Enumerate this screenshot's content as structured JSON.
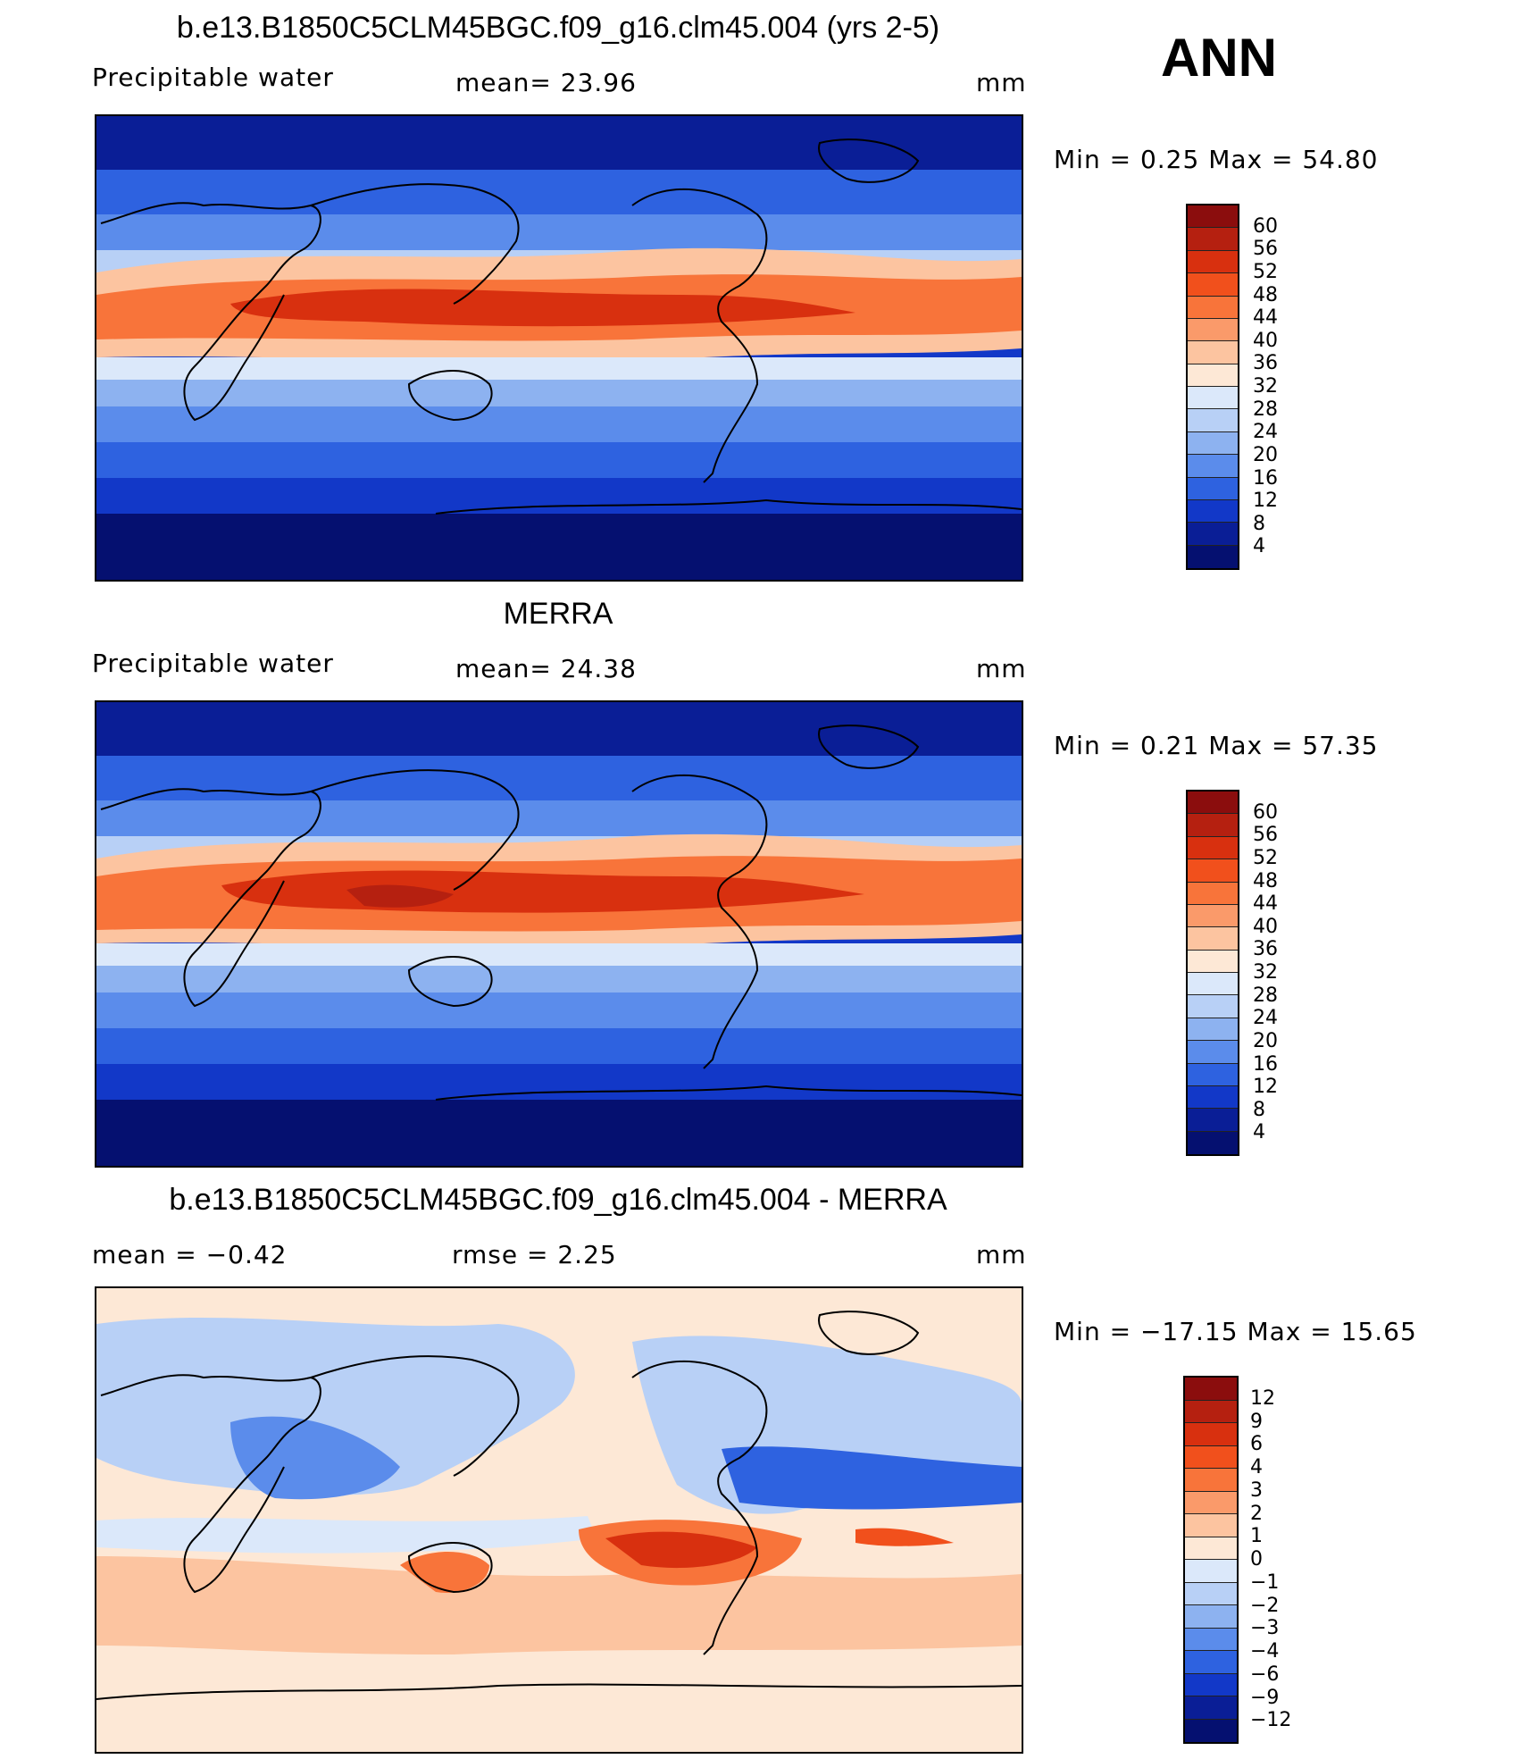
{
  "season": "ANN",
  "panels": [
    {
      "title": "b.e13.B1850C5CLM45BGC.f09_g16.clm45.004 (yrs 2-5)",
      "left_label": "Precipitable  water",
      "center_label": "mean=   23.96",
      "units": "mm",
      "minmax": "Min  =     0.25  Max  =    54.80",
      "legend_levels": [
        "60",
        "56",
        "52",
        "48",
        "44",
        "40",
        "36",
        "32",
        "28",
        "24",
        "20",
        "16",
        "12",
        "8",
        "4"
      ],
      "legend_colors": [
        "#8b0d0d",
        "#b52010",
        "#d8300f",
        "#f1501c",
        "#f8743a",
        "#fa9a6a",
        "#fcc4a0",
        "#fde8d6",
        "#dbe8fa",
        "#b8d0f6",
        "#8db2f0",
        "#5b8ceb",
        "#2e62e0",
        "#1238c8",
        "#0a1e96",
        "#051070"
      ]
    },
    {
      "title": "MERRA",
      "left_label": "Precipitable  water",
      "center_label": "mean=   24.38",
      "units": "mm",
      "minmax": "Min  =     0.21  Max  =    57.35",
      "legend_levels": [
        "60",
        "56",
        "52",
        "48",
        "44",
        "40",
        "36",
        "32",
        "28",
        "24",
        "20",
        "16",
        "12",
        "8",
        "4"
      ],
      "legend_colors": [
        "#8b0d0d",
        "#b52010",
        "#d8300f",
        "#f1501c",
        "#f8743a",
        "#fa9a6a",
        "#fcc4a0",
        "#fde8d6",
        "#dbe8fa",
        "#b8d0f6",
        "#8db2f0",
        "#5b8ceb",
        "#2e62e0",
        "#1238c8",
        "#0a1e96",
        "#051070"
      ]
    },
    {
      "title": "b.e13.B1850C5CLM45BGC.f09_g16.clm45.004 - MERRA",
      "left_label": "mean  =    −0.42",
      "center_label": "rmse  =     2.25",
      "units": "mm",
      "minmax": "Min  = −17.15  Max  =    15.65",
      "legend_levels": [
        "12",
        "9",
        "6",
        "4",
        "3",
        "2",
        "1",
        "0",
        "−1",
        "−2",
        "−3",
        "−4",
        "−6",
        "−9",
        "−12"
      ],
      "legend_colors": [
        "#8b0d0d",
        "#b52010",
        "#d8300f",
        "#f1501c",
        "#f8743a",
        "#fa9a6a",
        "#fcc4a0",
        "#fde8d6",
        "#dbe8fa",
        "#b8d0f6",
        "#8db2f0",
        "#5b8ceb",
        "#2e62e0",
        "#1238c8",
        "#0a1e96",
        "#051070"
      ]
    }
  ]
}
